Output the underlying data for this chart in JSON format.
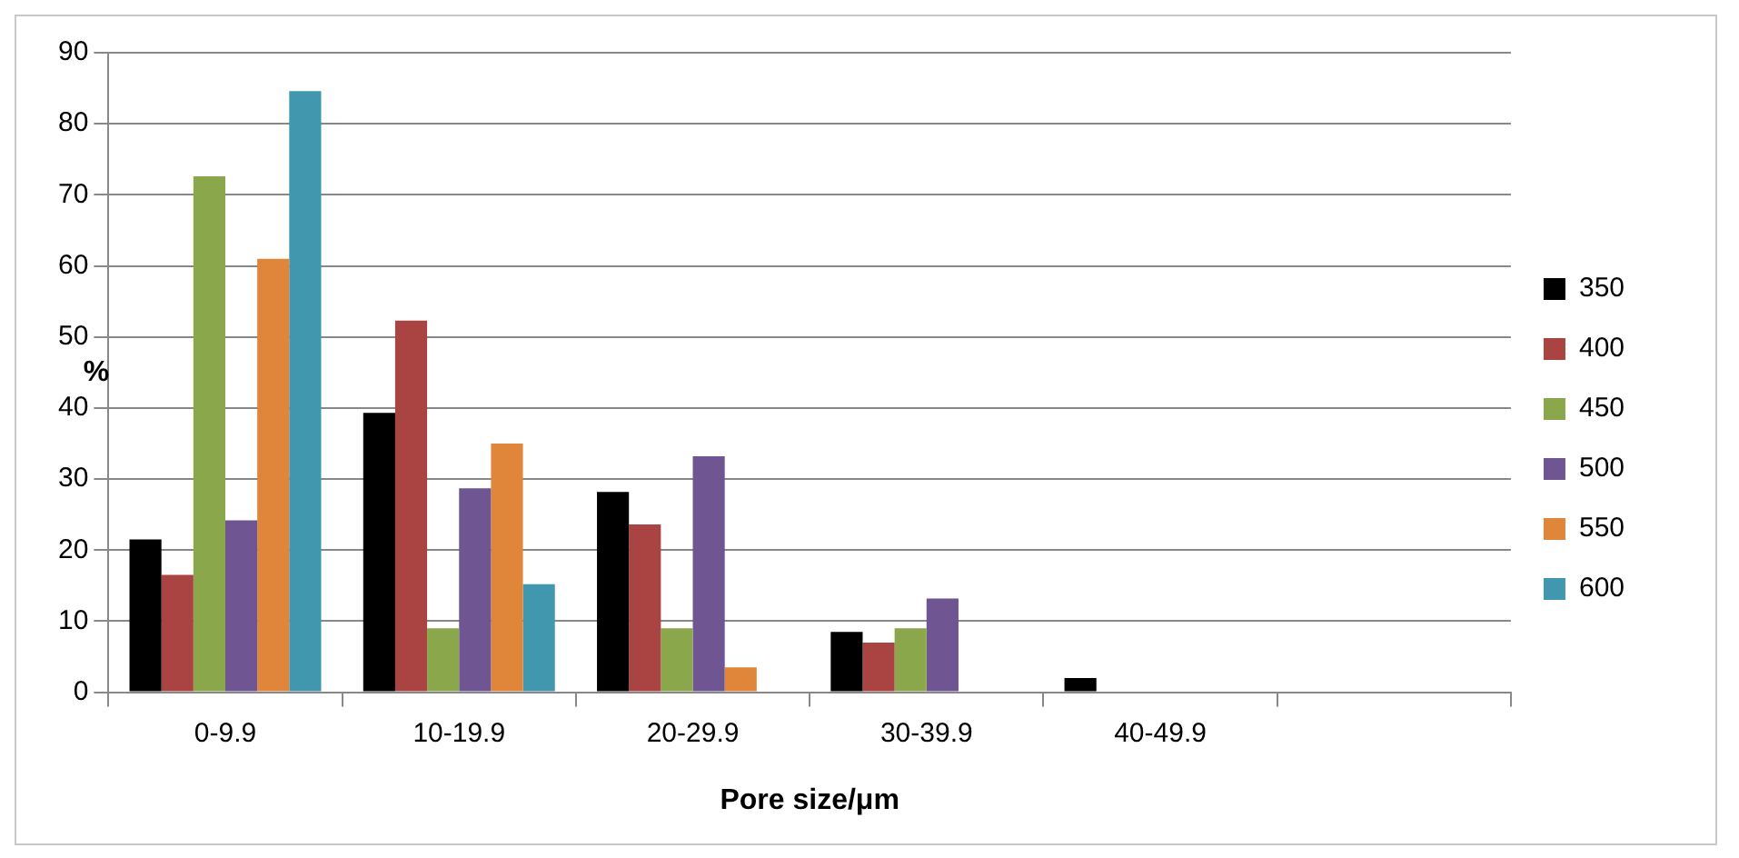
{
  "chart_data": {
    "type": "bar",
    "xlabel": "Pore size/μm",
    "ylabel": "%",
    "categories": [
      "0-9.9",
      "10-19.9",
      "20-29.9",
      "30-39.9",
      "40-49.9",
      null
    ],
    "series": [
      {
        "name": "350",
        "color": "#000000",
        "values": [
          21.5,
          39.3,
          28.2,
          8.5,
          2,
          null
        ]
      },
      {
        "name": "400",
        "color": "#a94442",
        "values": [
          16.5,
          52.3,
          23.6,
          7,
          0,
          null
        ]
      },
      {
        "name": "450",
        "color": "#8aa84b",
        "values": [
          72.6,
          9,
          9,
          9,
          0,
          null
        ]
      },
      {
        "name": "500",
        "color": "#6f5592",
        "values": [
          24.2,
          28.7,
          33.2,
          13.2,
          0,
          null
        ]
      },
      {
        "name": "550",
        "color": "#e0863a",
        "values": [
          61,
          35,
          3.5,
          0,
          0,
          null
        ]
      },
      {
        "name": "600",
        "color": "#4197ae",
        "values": [
          84.6,
          15.2,
          0,
          0,
          0,
          null
        ]
      }
    ],
    "ylim": [
      0,
      90
    ],
    "yticks": [
      0,
      10,
      20,
      30,
      40,
      50,
      60,
      70,
      80,
      90
    ],
    "grid": "y",
    "legend": "right"
  }
}
